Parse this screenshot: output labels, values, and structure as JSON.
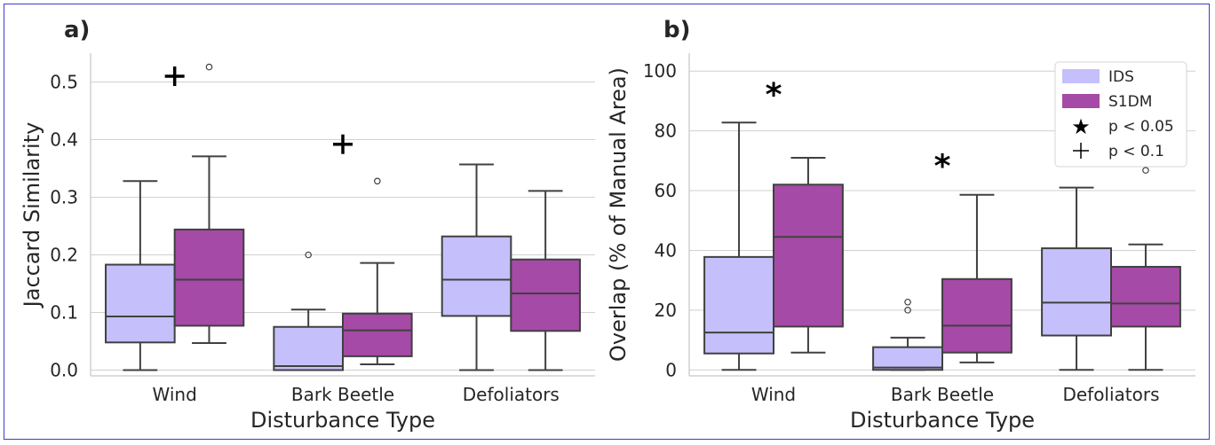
{
  "colors": {
    "IDS": "#c5c0fb",
    "S1DM": "#a54aa6",
    "line": "#404040",
    "grid": "#d0d0d0"
  },
  "legend": {
    "IDS": "IDS",
    "S1DM": "S1DM",
    "p05_symbol": "★",
    "p05_label": "p < 0.05",
    "p10_symbol": "+",
    "p10_label": "p < 0.1"
  },
  "chart_data": [
    {
      "panel_label": "a)",
      "type": "box",
      "xlabel": "Disturbance Type",
      "ylabel": "Jaccard Similarity",
      "ylim": [
        -0.01,
        0.55
      ],
      "yticks": [
        "0.0",
        "0.1",
        "0.2",
        "0.3",
        "0.4",
        "0.5"
      ],
      "categories": [
        "Wind",
        "Bark Beetle",
        "Defoliators"
      ],
      "grid": "horizontal",
      "series": [
        {
          "name": "IDS",
          "boxes": [
            {
              "whisker_low": 0.0,
              "q1": 0.048,
              "median": 0.093,
              "q3": 0.183,
              "whisker_high": 0.328,
              "outliers": []
            },
            {
              "whisker_low": 0.0,
              "q1": 0.0,
              "median": 0.007,
              "q3": 0.075,
              "whisker_high": 0.105,
              "outliers": [
                0.2
              ]
            },
            {
              "whisker_low": 0.0,
              "q1": 0.094,
              "median": 0.157,
              "q3": 0.232,
              "whisker_high": 0.357,
              "outliers": []
            }
          ]
        },
        {
          "name": "S1DM",
          "boxes": [
            {
              "whisker_low": 0.047,
              "q1": 0.077,
              "median": 0.157,
              "q3": 0.244,
              "whisker_high": 0.371,
              "outliers": [
                0.526
              ]
            },
            {
              "whisker_low": 0.01,
              "q1": 0.024,
              "median": 0.069,
              "q3": 0.098,
              "whisker_high": 0.186,
              "outliers": [
                0.328
              ]
            },
            {
              "whisker_low": 0.0,
              "q1": 0.068,
              "median": 0.133,
              "q3": 0.192,
              "whisker_high": 0.311,
              "outliers": []
            }
          ]
        }
      ],
      "significance": [
        {
          "category": "Wind",
          "symbol": "+",
          "y": 0.51
        },
        {
          "category": "Bark Beetle",
          "symbol": "+",
          "y": 0.392
        }
      ]
    },
    {
      "panel_label": "b)",
      "type": "box",
      "xlabel": "Disturbance Type",
      "ylabel": "Overlap (% of Manual Area)",
      "ylim": [
        -2,
        106
      ],
      "yticks": [
        "0",
        "20",
        "40",
        "60",
        "80",
        "100"
      ],
      "categories": [
        "Wind",
        "Bark Beetle",
        "Defoliators"
      ],
      "grid": "horizontal",
      "legend_position": "top-right",
      "series": [
        {
          "name": "IDS",
          "boxes": [
            {
              "whisker_low": 0.0,
              "q1": 5.5,
              "median": 12.5,
              "q3": 37.8,
              "whisker_high": 82.8,
              "outliers": []
            },
            {
              "whisker_low": 0.0,
              "q1": 0.0,
              "median": 0.8,
              "q3": 7.6,
              "whisker_high": 10.8,
              "outliers": [
                20.0,
                22.7
              ]
            },
            {
              "whisker_low": 0.0,
              "q1": 11.5,
              "median": 22.5,
              "q3": 40.7,
              "whisker_high": 61.0,
              "outliers": []
            }
          ]
        },
        {
          "name": "S1DM",
          "boxes": [
            {
              "whisker_low": 5.8,
              "q1": 14.5,
              "median": 44.5,
              "q3": 62.0,
              "whisker_high": 71.0,
              "outliers": []
            },
            {
              "whisker_low": 2.5,
              "q1": 5.8,
              "median": 14.8,
              "q3": 30.4,
              "whisker_high": 58.6,
              "outliers": []
            },
            {
              "whisker_low": 0.0,
              "q1": 14.5,
              "median": 22.2,
              "q3": 34.5,
              "whisker_high": 42.0,
              "outliers": [
                66.8
              ]
            }
          ]
        }
      ],
      "significance": [
        {
          "category": "Wind",
          "symbol": "*",
          "y": 94.5
        },
        {
          "category": "Bark Beetle",
          "symbol": "*",
          "y": 70.5
        }
      ]
    }
  ]
}
